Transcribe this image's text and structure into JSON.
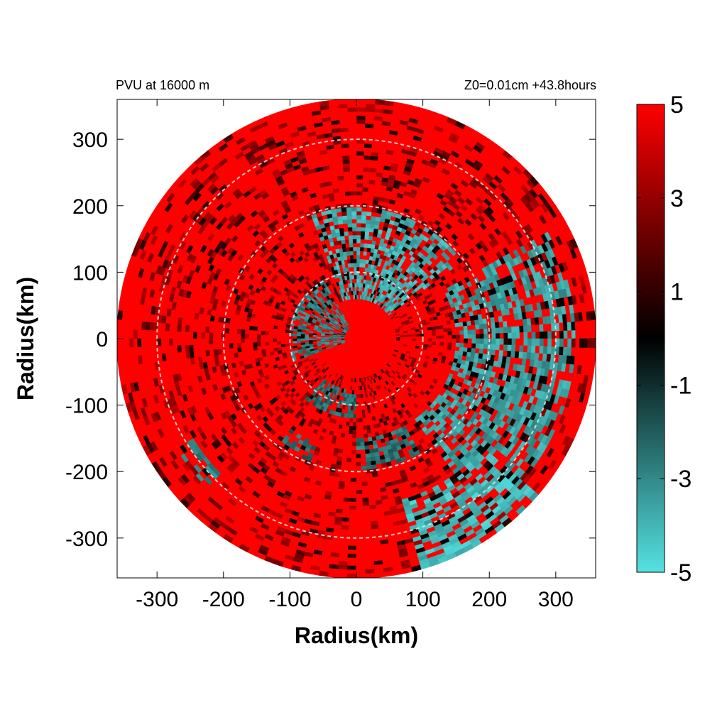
{
  "chart_data": {
    "type": "heatmap",
    "projection": "polar",
    "title_left": "PVU at 16000 m",
    "title_right": "Z0=0.01cm  +43.8hours",
    "xlabel": "Radius(km)",
    "ylabel": "Radius(km)",
    "xlim": [
      -360,
      360
    ],
    "ylim": [
      -360,
      360
    ],
    "max_radius": 360,
    "x_ticks": [
      -300,
      -200,
      -100,
      0,
      100,
      200,
      300
    ],
    "y_ticks": [
      300,
      200,
      100,
      0,
      -100,
      -200,
      -300
    ],
    "reference_circles": [
      100,
      200,
      300
    ],
    "colorbar": {
      "range": [
        -5,
        5
      ],
      "ticks": [
        5,
        3,
        1,
        -1,
        -3,
        -5
      ],
      "colors": [
        "#55e2e2",
        "#2a7272",
        "#000000",
        "#7a0000",
        "#ff0000"
      ]
    },
    "cyan_regions": [
      {
        "r": [
          60,
          200
        ],
        "theta": [
          35,
          110
        ],
        "v": -4.5
      },
      {
        "r": [
          150,
          330
        ],
        "theta": [
          -55,
          30
        ],
        "v": -4.2
      },
      {
        "r": [
          250,
          360
        ],
        "theta": [
          -75,
          -40
        ],
        "v": -4.8
      },
      {
        "r": [
          20,
          100
        ],
        "theta": [
          120,
          200
        ],
        "v": -3.5
      },
      {
        "r": [
          80,
          120
        ],
        "theta": [
          230,
          270
        ],
        "v": -3.0
      },
      {
        "r": [
          150,
          200
        ],
        "theta": [
          270,
          300
        ],
        "v": -3.2
      },
      {
        "r": [
          170,
          200
        ],
        "theta": [
          235,
          250
        ],
        "v": -3.0
      },
      {
        "r": [
          290,
          320
        ],
        "theta": [
          212,
          224
        ],
        "v": -3.5
      }
    ]
  }
}
